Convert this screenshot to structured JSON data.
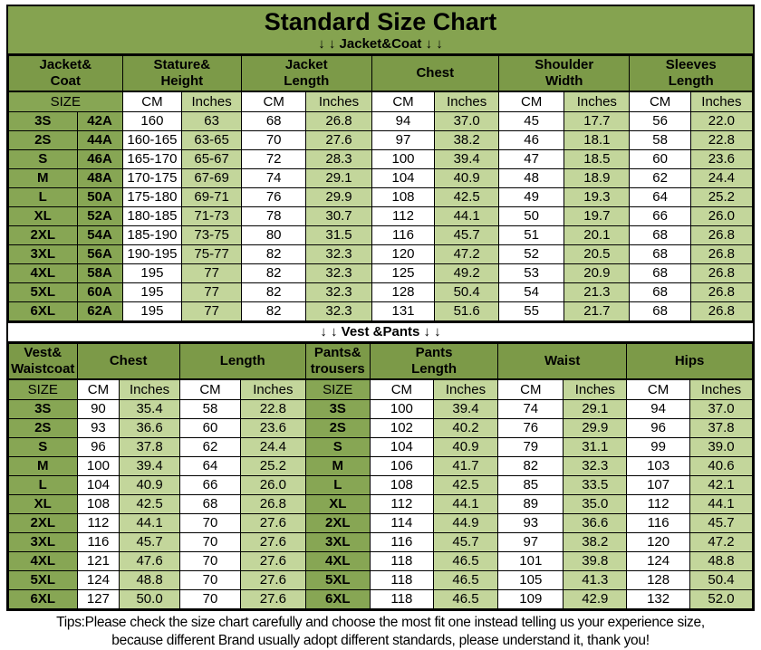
{
  "title": "Standard Size Chart",
  "colors": {
    "title_banner_bg": "#85A350",
    "header_green": "#7C9A48",
    "size_cell_green": "#87A654",
    "light_green": "#C3D69B",
    "border": "#000000"
  },
  "table1": {
    "banner": "↓ ↓  Jacket&Coat ↓ ↓",
    "groups": [
      {
        "label": "Jacket&\nCoat",
        "cols": 2
      },
      {
        "label": "Stature&\nHeight",
        "cols": 2
      },
      {
        "label": "Jacket\nLength",
        "cols": 2
      },
      {
        "label": "Chest",
        "cols": 2
      },
      {
        "label": "Shoulder\nWidth",
        "cols": 2
      },
      {
        "label": "Sleeves\nLength",
        "cols": 2
      }
    ],
    "subheader": [
      {
        "label": "SIZE",
        "span": 2
      },
      {
        "label": "CM"
      },
      {
        "label": "Inches"
      },
      {
        "label": "CM"
      },
      {
        "label": "Inches"
      },
      {
        "label": "CM"
      },
      {
        "label": "Inches"
      },
      {
        "label": "CM"
      },
      {
        "label": "Inches"
      },
      {
        "label": "CM"
      },
      {
        "label": "Inches"
      }
    ],
    "rows": [
      {
        "size": "3S",
        "size2": "42A",
        "cells": [
          "160",
          "63",
          "68",
          "26.8",
          "94",
          "37.0",
          "45",
          "17.7",
          "56",
          "22.0"
        ]
      },
      {
        "size": "2S",
        "size2": "44A",
        "cells": [
          "160-165",
          "63-65",
          "70",
          "27.6",
          "97",
          "38.2",
          "46",
          "18.1",
          "58",
          "22.8"
        ]
      },
      {
        "size": "S",
        "size2": "46A",
        "cells": [
          "165-170",
          "65-67",
          "72",
          "28.3",
          "100",
          "39.4",
          "47",
          "18.5",
          "60",
          "23.6"
        ]
      },
      {
        "size": "M",
        "size2": "48A",
        "cells": [
          "170-175",
          "67-69",
          "74",
          "29.1",
          "104",
          "40.9",
          "48",
          "18.9",
          "62",
          "24.4"
        ]
      },
      {
        "size": "L",
        "size2": "50A",
        "cells": [
          "175-180",
          "69-71",
          "76",
          "29.9",
          "108",
          "42.5",
          "49",
          "19.3",
          "64",
          "25.2"
        ]
      },
      {
        "size": "XL",
        "size2": "52A",
        "cells": [
          "180-185",
          "71-73",
          "78",
          "30.7",
          "112",
          "44.1",
          "50",
          "19.7",
          "66",
          "26.0"
        ]
      },
      {
        "size": "2XL",
        "size2": "54A",
        "cells": [
          "185-190",
          "73-75",
          "80",
          "31.5",
          "116",
          "45.7",
          "51",
          "20.1",
          "68",
          "26.8"
        ]
      },
      {
        "size": "3XL",
        "size2": "56A",
        "cells": [
          "190-195",
          "75-77",
          "82",
          "32.3",
          "120",
          "47.2",
          "52",
          "20.5",
          "68",
          "26.8"
        ]
      },
      {
        "size": "4XL",
        "size2": "58A",
        "cells": [
          "195",
          "77",
          "82",
          "32.3",
          "125",
          "49.2",
          "53",
          "20.9",
          "68",
          "26.8"
        ]
      },
      {
        "size": "5XL",
        "size2": "60A",
        "cells": [
          "195",
          "77",
          "82",
          "32.3",
          "128",
          "50.4",
          "54",
          "21.3",
          "68",
          "26.8"
        ]
      },
      {
        "size": "6XL",
        "size2": "62A",
        "cells": [
          "195",
          "77",
          "82",
          "32.3",
          "131",
          "51.6",
          "55",
          "21.7",
          "68",
          "26.8"
        ]
      }
    ]
  },
  "table2": {
    "banner": "↓ ↓  Vest &Pants ↓ ↓",
    "groups": [
      {
        "label": "Vest&\nWaistcoat",
        "cols": 1
      },
      {
        "label": "Chest",
        "cols": 2
      },
      {
        "label": "Length",
        "cols": 2
      },
      {
        "label": "Pants&\ntrousers",
        "cols": 1
      },
      {
        "label": "Pants\nLength",
        "cols": 2
      },
      {
        "label": "Waist",
        "cols": 2
      },
      {
        "label": "Hips",
        "cols": 2
      }
    ],
    "subheader": [
      {
        "label": "SIZE",
        "span": 1
      },
      {
        "label": "CM"
      },
      {
        "label": "Inches"
      },
      {
        "label": "CM"
      },
      {
        "label": "Inches"
      },
      {
        "label": "SIZE",
        "span": 1
      },
      {
        "label": "CM"
      },
      {
        "label": "Inches"
      },
      {
        "label": "CM"
      },
      {
        "label": "Inches"
      },
      {
        "label": "CM"
      },
      {
        "label": "Inches"
      }
    ],
    "rows": [
      {
        "size": "3S",
        "left": [
          "90",
          "35.4",
          "58",
          "22.8"
        ],
        "size2": "3S",
        "right": [
          "100",
          "39.4",
          "74",
          "29.1",
          "94",
          "37.0"
        ]
      },
      {
        "size": "2S",
        "left": [
          "93",
          "36.6",
          "60",
          "23.6"
        ],
        "size2": "2S",
        "right": [
          "102",
          "40.2",
          "76",
          "29.9",
          "96",
          "37.8"
        ]
      },
      {
        "size": "S",
        "left": [
          "96",
          "37.8",
          "62",
          "24.4"
        ],
        "size2": "S",
        "right": [
          "104",
          "40.9",
          "79",
          "31.1",
          "99",
          "39.0"
        ]
      },
      {
        "size": "M",
        "left": [
          "100",
          "39.4",
          "64",
          "25.2"
        ],
        "size2": "M",
        "right": [
          "106",
          "41.7",
          "82",
          "32.3",
          "103",
          "40.6"
        ]
      },
      {
        "size": "L",
        "left": [
          "104",
          "40.9",
          "66",
          "26.0"
        ],
        "size2": "L",
        "right": [
          "108",
          "42.5",
          "85",
          "33.5",
          "107",
          "42.1"
        ]
      },
      {
        "size": "XL",
        "left": [
          "108",
          "42.5",
          "68",
          "26.8"
        ],
        "size2": "XL",
        "right": [
          "112",
          "44.1",
          "89",
          "35.0",
          "112",
          "44.1"
        ]
      },
      {
        "size": "2XL",
        "left": [
          "112",
          "44.1",
          "70",
          "27.6"
        ],
        "size2": "2XL",
        "right": [
          "114",
          "44.9",
          "93",
          "36.6",
          "116",
          "45.7"
        ]
      },
      {
        "size": "3XL",
        "left": [
          "116",
          "45.7",
          "70",
          "27.6"
        ],
        "size2": "3XL",
        "right": [
          "116",
          "45.7",
          "97",
          "38.2",
          "120",
          "47.2"
        ]
      },
      {
        "size": "4XL",
        "left": [
          "121",
          "47.6",
          "70",
          "27.6"
        ],
        "size2": "4XL",
        "right": [
          "118",
          "46.5",
          "101",
          "39.8",
          "124",
          "48.8"
        ]
      },
      {
        "size": "5XL",
        "left": [
          "124",
          "48.8",
          "70",
          "27.6"
        ],
        "size2": "5XL",
        "right": [
          "118",
          "46.5",
          "105",
          "41.3",
          "128",
          "50.4"
        ]
      },
      {
        "size": "6XL",
        "left": [
          "127",
          "50.0",
          "70",
          "27.6"
        ],
        "size2": "6XL",
        "right": [
          "118",
          "46.5",
          "109",
          "42.9",
          "132",
          "52.0"
        ]
      }
    ]
  },
  "tips": {
    "line1": "Tips:Please check the size chart carefully and choose the most fit one instead telling us your experience size,",
    "line2": "because different Brand usually adopt different standards, please understand it, thank you!"
  }
}
